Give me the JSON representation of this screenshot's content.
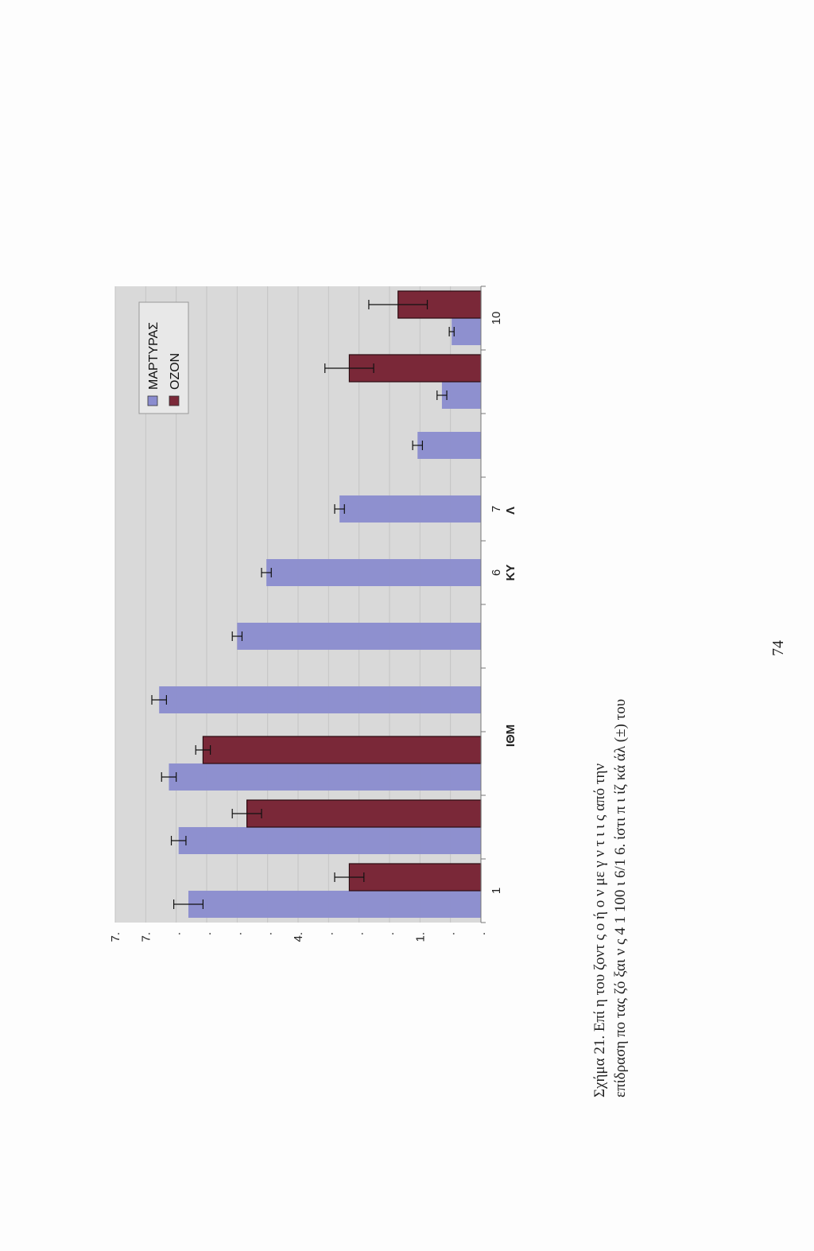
{
  "page_number": "74",
  "caption": {
    "line1": "Σχήμα 21. Επί     η του ζοντ ς  ο ή ο  ν με  γ ν τ  ι        ι         ς   από την",
    "line2": "επίδραση πο            τας ζό ξαι ν ς 4  1   100  ι  6/1   6.   ίστι  π ι  ίζ     κά   άλ   (±) του"
  },
  "chart_data": {
    "type": "bar",
    "orientation": "rotated-90-counterclockwise",
    "categories": [
      "1",
      "",
      "",
      "",
      "",
      "6",
      "7",
      "",
      "",
      "10"
    ],
    "x_tick_labels": [
      "1",
      "6",
      "7",
      "10"
    ],
    "xlabel_fragments": [
      "ΙΘΜ",
      "ΚΥ",
      "Λ"
    ],
    "y_tick_labels": [
      "7.",
      "7.",
      ".",
      ".",
      ".",
      ".",
      "4.",
      ".",
      ".",
      ".",
      "1.",
      ".",
      "."
    ],
    "ylim": [
      0,
      7.5
    ],
    "series": [
      {
        "name": "ΜΑΡΤΥΡΑΣ",
        "color": "#8a8ccf",
        "values": [
          6.0,
          6.2,
          6.4,
          6.6,
          5.0,
          4.4,
          2.9,
          1.3,
          0.8,
          0.6
        ],
        "errors": [
          0.3,
          0.15,
          0.15,
          0.15,
          0.1,
          0.1,
          0.1,
          0.1,
          0.1,
          0.05
        ]
      },
      {
        "name": "ΟΖΟΝ",
        "color": "#7a2838",
        "values": [
          2.7,
          4.8,
          5.7,
          null,
          null,
          null,
          null,
          null,
          2.7,
          1.7
        ],
        "errors": [
          0.3,
          0.3,
          0.15,
          null,
          null,
          null,
          null,
          null,
          0.5,
          0.6
        ]
      }
    ],
    "grid": true,
    "legend_position": "top-right"
  }
}
